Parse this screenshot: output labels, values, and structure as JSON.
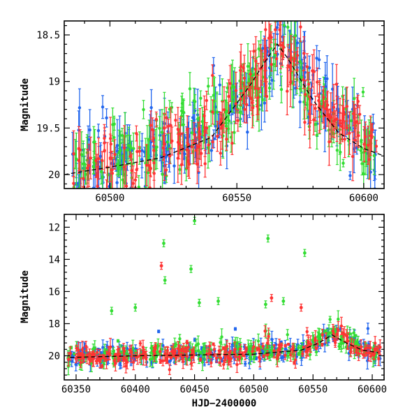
{
  "chart_data": [
    {
      "type": "scatter",
      "panel": "top",
      "xlabel": "",
      "ylabel": "Magnitude",
      "xlim": [
        60482,
        60608
      ],
      "ylim": [
        20.15,
        18.35
      ],
      "y_inverted": true,
      "x_ticks": [
        60500,
        60550,
        60600
      ],
      "x_tick_labels": [
        "60500",
        "60550",
        "60600"
      ],
      "y_ticks": [
        18.5,
        19,
        19.5,
        20
      ],
      "y_tick_labels": [
        "18.5",
        "19",
        "19.5",
        "20"
      ],
      "error_bars": true,
      "model_curve": {
        "style": "dashed",
        "color": "#000000",
        "x": [
          60482,
          60500,
          60520,
          60540,
          60555,
          60562,
          60566,
          60570,
          60580,
          60590,
          60600,
          60608
        ],
        "y": [
          20.0,
          19.92,
          19.82,
          19.6,
          19.05,
          18.75,
          18.6,
          18.75,
          19.2,
          19.55,
          19.72,
          19.8
        ]
      },
      "series": [
        {
          "color": "#2266ee",
          "base": [
            [
              60482,
              19.95
            ],
            [
              60500,
              19.85
            ],
            [
              60520,
              19.8
            ],
            [
              60540,
              19.55
            ],
            [
              60550,
              19.3
            ],
            [
              60558,
              18.95
            ],
            [
              60566,
              18.6
            ],
            [
              60572,
              18.8
            ],
            [
              60580,
              19.15
            ],
            [
              60590,
              19.45
            ],
            [
              60600,
              19.65
            ],
            [
              60605,
              19.75
            ]
          ]
        },
        {
          "color": "#33dd33",
          "base": [
            [
              60482,
              19.9
            ],
            [
              60500,
              19.85
            ],
            [
              60520,
              19.78
            ],
            [
              60540,
              19.5
            ],
            [
              60550,
              19.3
            ],
            [
              60558,
              18.95
            ],
            [
              60566,
              18.6
            ],
            [
              60572,
              18.85
            ],
            [
              60580,
              19.2
            ],
            [
              60590,
              19.5
            ],
            [
              60600,
              19.68
            ],
            [
              60605,
              19.8
            ]
          ]
        },
        {
          "color": "#ff3333",
          "base": [
            [
              60482,
              19.95
            ],
            [
              60500,
              19.9
            ],
            [
              60520,
              19.8
            ],
            [
              60540,
              19.55
            ],
            [
              60550,
              19.3
            ],
            [
              60558,
              18.95
            ],
            [
              60566,
              18.6
            ],
            [
              60572,
              18.8
            ],
            [
              60580,
              19.15
            ],
            [
              60590,
              19.45
            ],
            [
              60600,
              19.65
            ],
            [
              60605,
              19.75
            ]
          ]
        }
      ]
    },
    {
      "type": "scatter",
      "panel": "bottom",
      "xlabel": "HJD−2400000",
      "ylabel": "Magnitude",
      "xlim": [
        60340,
        60610
      ],
      "ylim": [
        21.5,
        11.2
      ],
      "y_inverted": true,
      "x_ticks": [
        60350,
        60400,
        60450,
        60500,
        60550,
        60600
      ],
      "x_tick_labels": [
        "60350",
        "60400",
        "60450",
        "60500",
        "60550",
        "60600"
      ],
      "y_ticks": [
        12,
        14,
        16,
        18,
        20
      ],
      "y_tick_labels": [
        "12",
        "14",
        "16",
        "18",
        "20"
      ],
      "error_bars": true,
      "model_curve": {
        "style": "dashed",
        "color": "#000000",
        "x": [
          60345,
          60400,
          60450,
          60500,
          60540,
          60555,
          60566,
          60578,
          60592,
          60605
        ],
        "y": [
          20.1,
          20.0,
          19.95,
          19.9,
          19.65,
          19.2,
          18.7,
          19.2,
          19.65,
          19.8
        ]
      },
      "outliers": [
        {
          "color": "#33dd33",
          "points": [
            [
              60450,
              11.6
            ],
            [
              60512,
              12.7
            ],
            [
              60424,
              13.0
            ],
            [
              60543,
              13.6
            ],
            [
              60447,
              14.6
            ],
            [
              60425,
              15.3
            ],
            [
              60454,
              16.7
            ],
            [
              60470,
              16.6
            ],
            [
              60525,
              16.6
            ],
            [
              60380,
              17.2
            ],
            [
              60510,
              16.8
            ],
            [
              60400,
              17.0
            ]
          ]
        },
        {
          "color": "#ff3333",
          "points": [
            [
              60422,
              14.4
            ],
            [
              60515,
              16.4
            ],
            [
              60540,
              17.0
            ]
          ]
        }
      ],
      "series": [
        {
          "color": "#2266ee",
          "base": [
            [
              60345,
              20.1
            ],
            [
              60400,
              19.95
            ],
            [
              60450,
              19.9
            ],
            [
              60500,
              19.85
            ],
            [
              60540,
              19.6
            ],
            [
              60555,
              19.1
            ],
            [
              60566,
              18.6
            ],
            [
              60578,
              19.1
            ],
            [
              60592,
              19.6
            ],
            [
              60605,
              19.8
            ]
          ]
        },
        {
          "color": "#33dd33",
          "base": [
            [
              60345,
              20.05
            ],
            [
              60400,
              19.9
            ],
            [
              60450,
              19.85
            ],
            [
              60500,
              19.8
            ],
            [
              60540,
              19.55
            ],
            [
              60555,
              19.1
            ],
            [
              60566,
              18.6
            ],
            [
              60578,
              19.15
            ],
            [
              60592,
              19.6
            ],
            [
              60605,
              19.8
            ]
          ]
        },
        {
          "color": "#ff3333",
          "base": [
            [
              60345,
              20.1
            ],
            [
              60400,
              20.0
            ],
            [
              60450,
              19.95
            ],
            [
              60500,
              19.9
            ],
            [
              60540,
              19.6
            ],
            [
              60555,
              19.1
            ],
            [
              60566,
              18.6
            ],
            [
              60578,
              19.1
            ],
            [
              60592,
              19.6
            ],
            [
              60605,
              19.8
            ]
          ]
        }
      ]
    }
  ]
}
